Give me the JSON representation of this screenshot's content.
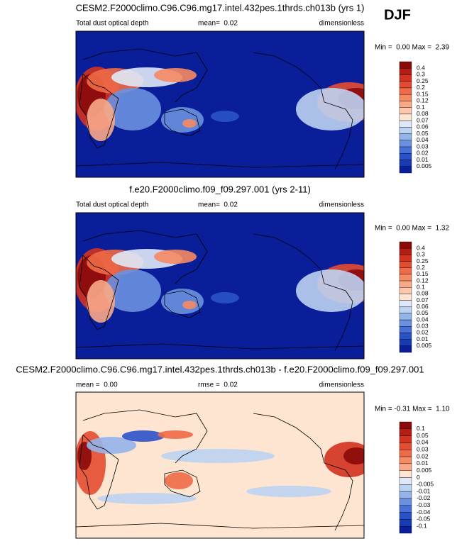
{
  "season": "DJF",
  "panels": [
    {
      "title": "CESM2.F2000climo.C96.C96.mg17.intel.432pes.1thrds.ch013b (yrs 1)",
      "left": "Total dust optical depth",
      "middle": "mean=  0.02",
      "right": "dimensionless",
      "minmax": "Min =  0.00 Max =  2.39",
      "levels": [
        "0.4",
        "0.3",
        "0.25",
        "0.2",
        "0.15",
        "0.12",
        "0.1",
        "0.08",
        "0.07",
        "0.06",
        "0.05",
        "0.04",
        "0.03",
        "0.02",
        "0.01",
        "0.005"
      ],
      "colors": [
        "#8a0a0a",
        "#b51d14",
        "#d2321f",
        "#e44b30",
        "#ef6a46",
        "#f68a63",
        "#f9a988",
        "#fcc7ad",
        "#fde5d2",
        "#dfe8f8",
        "#bcd2f2",
        "#93b4ea",
        "#6a91e0",
        "#4770d6",
        "#2a52c8",
        "#173bb3",
        "#0a1e9a"
      ]
    },
    {
      "title": "f.e20.F2000climo.f09_f09.297.001 (yrs 2-11)",
      "left": "Total dust optical depth",
      "middle": "mean=  0.02",
      "right": "dimensionless",
      "minmax": "Min =  0.00 Max =  1.32",
      "levels": [
        "0.4",
        "0.3",
        "0.25",
        "0.2",
        "0.15",
        "0.12",
        "0.1",
        "0.08",
        "0.07",
        "0.06",
        "0.05",
        "0.04",
        "0.03",
        "0.02",
        "0.01",
        "0.005"
      ],
      "colors": [
        "#8a0a0a",
        "#b51d14",
        "#d2321f",
        "#e44b30",
        "#ef6a46",
        "#f68a63",
        "#f9a988",
        "#fcc7ad",
        "#fde5d2",
        "#dfe8f8",
        "#bcd2f2",
        "#93b4ea",
        "#6a91e0",
        "#4770d6",
        "#2a52c8",
        "#173bb3",
        "#0a1e9a"
      ]
    },
    {
      "title": "CESM2.F2000climo.C96.C96.mg17.intel.432pes.1thrds.ch013b - f.e20.F2000climo.f09_f09.297.001",
      "left": "mean =  0.00",
      "middle": "rmse =  0.02",
      "right": "dimensionless",
      "minmax": "Min = -0.31 Max =  1.10",
      "levels": [
        "0.1",
        "0.05",
        "0.04",
        "0.03",
        "0.02",
        "0.01",
        "0.005",
        "0",
        "-0.005",
        "-0.01",
        "-0.02",
        "-0.03",
        "-0.04",
        "-0.05",
        "-0.1"
      ],
      "colors": [
        "#8a0a0a",
        "#b51d14",
        "#d2321f",
        "#e44b30",
        "#ef6a46",
        "#f68a63",
        "#f9a988",
        "#fde5d2",
        "#dfe8f8",
        "#bcd2f2",
        "#93b4ea",
        "#6a91e0",
        "#4770d6",
        "#2a52c8",
        "#173bb3",
        "#0a1e9a"
      ]
    }
  ]
}
